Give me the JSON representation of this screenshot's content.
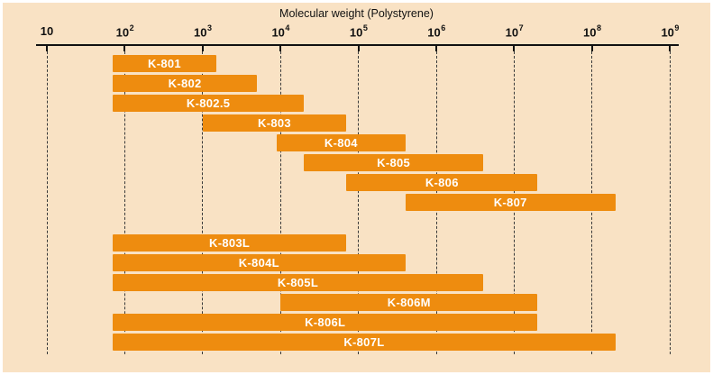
{
  "chart_data": {
    "type": "bar",
    "orientation": "horizontal-range",
    "title": "Molecular weight (Polystyrene)",
    "x_axis": {
      "scale": "log10",
      "min": 10,
      "max": 1000000000,
      "tick_base": "10",
      "tick_exponents": [
        1,
        2,
        3,
        4,
        5,
        6,
        7,
        8,
        9
      ],
      "gridlines": "dashed-vertical"
    },
    "colors": {
      "background": "#f9e2c4",
      "bar": "#ee8c0f",
      "bar_label": "#ffffff",
      "axis": "#111111",
      "gridline": "#3a3a3a"
    },
    "bars": [
      {
        "label": "K-801",
        "mw_min": 70,
        "mw_max": 1500,
        "group": 1,
        "row": 0
      },
      {
        "label": "K-802",
        "mw_min": 70,
        "mw_max": 5000,
        "group": 1,
        "row": 1
      },
      {
        "label": "K-802.5",
        "mw_min": 70,
        "mw_max": 20000,
        "group": 1,
        "row": 2
      },
      {
        "label": "K-803",
        "mw_min": 1000,
        "mw_max": 70000,
        "group": 1,
        "row": 3
      },
      {
        "label": "K-804",
        "mw_min": 9000,
        "mw_max": 400000,
        "group": 1,
        "row": 4
      },
      {
        "label": "K-805",
        "mw_min": 20000,
        "mw_max": 4000000,
        "group": 1,
        "row": 5
      },
      {
        "label": "K-806",
        "mw_min": 70000,
        "mw_max": 20000000,
        "group": 1,
        "row": 6
      },
      {
        "label": "K-807",
        "mw_min": 400000,
        "mw_max": 200000000,
        "group": 1,
        "row": 7
      },
      {
        "label": "K-803L",
        "mw_min": 70,
        "mw_max": 70000,
        "group": 2,
        "row": 0
      },
      {
        "label": "K-804L",
        "mw_min": 70,
        "mw_max": 400000,
        "group": 2,
        "row": 1
      },
      {
        "label": "K-805L",
        "mw_min": 70,
        "mw_max": 4000000,
        "group": 2,
        "row": 2
      },
      {
        "label": "K-806M",
        "mw_min": 10000,
        "mw_max": 20000000,
        "group": 2,
        "row": 3
      },
      {
        "label": "K-806L",
        "mw_min": 70,
        "mw_max": 20000000,
        "group": 2,
        "row": 4
      },
      {
        "label": "K-807L",
        "mw_min": 70,
        "mw_max": 200000000,
        "group": 2,
        "row": 5
      }
    ]
  }
}
